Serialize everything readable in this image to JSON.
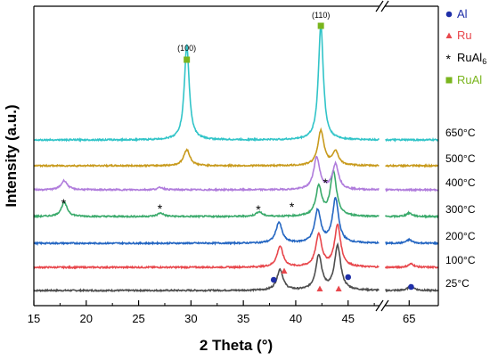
{
  "chart_data": {
    "type": "line",
    "title": "",
    "xlabel": "2 Theta (°)",
    "ylabel": "Intensity (a.u.)",
    "x_ticks": [
      "15",
      "20",
      "25",
      "30",
      "35",
      "40",
      "45",
      "65"
    ],
    "xlim_segments": [
      [
        15,
        48
      ],
      [
        62.5,
        68
      ]
    ],
    "axis_break": true,
    "grid": false,
    "legend_position": "top-right",
    "legend": [
      {
        "label": "Al",
        "marker": "circle",
        "color": "#1f2fa8",
        "html": "Al"
      },
      {
        "label": "Ru",
        "marker": "triangle",
        "color": "#e8474c",
        "html": "Ru"
      },
      {
        "label": "RuAl6",
        "marker": "asterisk",
        "color": "#000000",
        "html": "RuAl<tspan font-size='9' dy='3'>6</tspan>"
      },
      {
        "label": "RuAl",
        "marker": "square",
        "color": "#7ab51d",
        "html": "RuAl"
      }
    ],
    "series": [
      {
        "name": "25°C",
        "color": "#4d4d4d",
        "peaks": [
          {
            "x": 38.5,
            "h": 18
          },
          {
            "x": 42.2,
            "h": 30
          },
          {
            "x": 44.0,
            "h": 38
          },
          {
            "x": 65.2,
            "h": 4
          }
        ]
      },
      {
        "name": "100°C",
        "color": "#e8474c",
        "peaks": [
          {
            "x": 38.5,
            "h": 18
          },
          {
            "x": 42.2,
            "h": 28
          },
          {
            "x": 44.0,
            "h": 36
          },
          {
            "x": 65.2,
            "h": 3
          }
        ]
      },
      {
        "name": "200°C",
        "color": "#2466c2",
        "peaks": [
          {
            "x": 38.4,
            "h": 18
          },
          {
            "x": 42.1,
            "h": 28
          },
          {
            "x": 43.8,
            "h": 38
          },
          {
            "x": 65.0,
            "h": 3
          }
        ]
      },
      {
        "name": "300°C",
        "color": "#3aaa6b",
        "peaks": [
          {
            "x": 17.9,
            "h": 12
          },
          {
            "x": 27.1,
            "h": 3
          },
          {
            "x": 36.5,
            "h": 4
          },
          {
            "x": 42.2,
            "h": 25
          },
          {
            "x": 43.6,
            "h": 38
          },
          {
            "x": 65.0,
            "h": 3
          }
        ]
      },
      {
        "name": "400°C",
        "color": "#b07cdc",
        "peaks": [
          {
            "x": 17.9,
            "h": 8
          },
          {
            "x": 27.1,
            "h": 2
          },
          {
            "x": 42.0,
            "h": 28
          },
          {
            "x": 43.8,
            "h": 22
          }
        ]
      },
      {
        "name": "500°C",
        "color": "#c89a1c",
        "peaks": [
          {
            "x": 29.6,
            "h": 14
          },
          {
            "x": 42.4,
            "h": 30
          },
          {
            "x": 43.8,
            "h": 12
          }
        ]
      },
      {
        "name": "650°C",
        "color": "#31c4c8",
        "peaks": [
          {
            "x": 29.6,
            "h": 82
          },
          {
            "x": 42.4,
            "h": 100
          }
        ]
      }
    ],
    "annotations": [
      {
        "text": "(100)",
        "x": 29.6,
        "marker": "square"
      },
      {
        "text": "(110)",
        "x": 42.4,
        "marker": "square"
      },
      {
        "text": "*",
        "x": 17.9
      },
      {
        "text": "*",
        "x": 27.1
      },
      {
        "text": "*",
        "x": 36.5
      },
      {
        "text": "*",
        "x": 39.7
      },
      {
        "text": "*",
        "x": 42.9
      }
    ]
  }
}
